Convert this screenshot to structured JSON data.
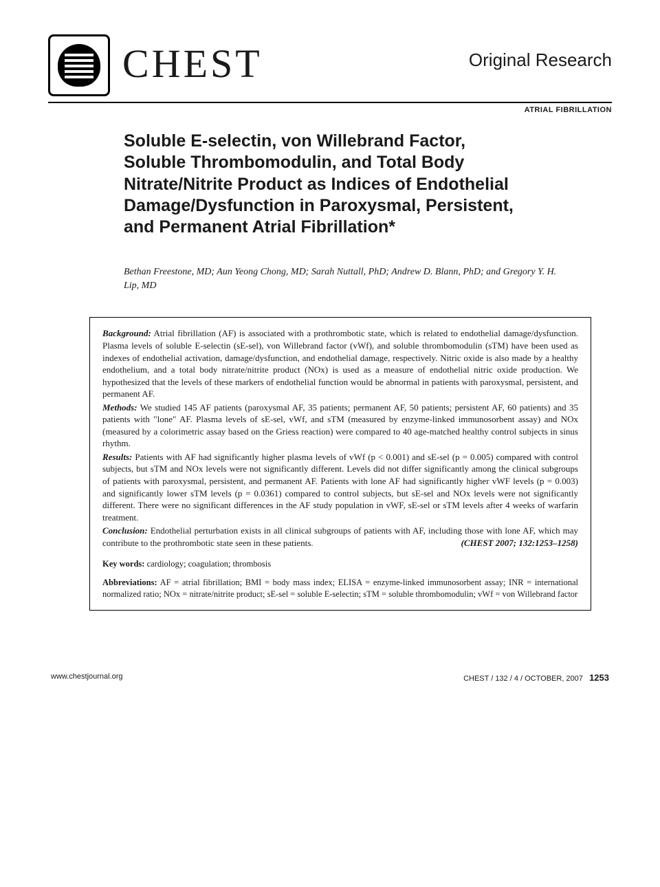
{
  "header": {
    "journal_name": "CHEST",
    "section_type": "Original Research",
    "section_topic": "ATRIAL FIBRILLATION"
  },
  "article": {
    "title": "Soluble E-selectin, von Willebrand Factor, Soluble Thrombomodulin, and Total Body Nitrate/Nitrite Product as Indices of Endothelial Damage/Dysfunction in Paroxysmal, Persistent, and Permanent Atrial Fibrillation*",
    "authors": "Bethan Freestone, MD; Aun Yeong Chong, MD; Sarah Nuttall, PhD; Andrew D. Blann, PhD; and Gregory Y. H. Lip, MD"
  },
  "abstract": {
    "background": {
      "label": "Background:",
      "text": " Atrial fibrillation (AF) is associated with a prothrombotic state, which is related to endothelial damage/dysfunction. Plasma levels of soluble E-selectin (sE-sel), von Willebrand factor (vWf), and soluble thrombomodulin (sTM) have been used as indexes of endothelial activation, damage/dysfunction, and endothelial damage, respectively. Nitric oxide is also made by a healthy endothelium, and a total body nitrate/nitrite product (NOx) is used as a measure of endothelial nitric oxide production. We hypothesized that the levels of these markers of endothelial function would be abnormal in patients with paroxysmal, persistent, and permanent AF."
    },
    "methods": {
      "label": "Methods:",
      "text": " We studied 145 AF patients (paroxysmal AF, 35 patients; permanent AF, 50 patients; persistent AF, 60 patients) and 35 patients with \"lone\" AF. Plasma levels of sE-sel, vWf, and sTM (measured by enzyme-linked immunosorbent assay) and NOx (measured by a colorimetric assay based on the Griess reaction) were compared to 40 age-matched healthy control subjects in sinus rhythm."
    },
    "results": {
      "label": "Results:",
      "text": " Patients with AF had significantly higher plasma levels of vWf (p < 0.001) and sE-sel (p = 0.005) compared with control subjects, but sTM and NOx levels were not significantly different. Levels did not differ significantly among the clinical subgroups of patients with paroxysmal, persistent, and permanent AF. Patients with lone AF had significantly higher vWF levels (p = 0.003) and significantly lower sTM levels (p = 0.0361) compared to control subjects, but sE-sel and NOx levels were not significantly different. There were no significant differences in the AF study population in vWF, sE-sel or sTM levels after 4 weeks of warfarin treatment."
    },
    "conclusion": {
      "label": "Conclusion:",
      "text": " Endothelial perturbation exists in all clinical subgroups of patients with AF, including those with lone AF, which may contribute to the prothrombotic state seen in these patients.",
      "citation": "(CHEST 2007; 132:1253–1258)"
    },
    "keywords": {
      "label": "Key words:",
      "text": " cardiology; coagulation; thrombosis"
    },
    "abbreviations": {
      "label": "Abbreviations:",
      "text": " AF = atrial fibrillation; BMI = body mass index; ELISA = enzyme-linked immunosorbent assay; INR = international normalized ratio; NOx = nitrate/nitrite product; sE-sel = soluble E-selectin; sTM = soluble thrombomodulin; vWf = von Willebrand factor"
    }
  },
  "footer": {
    "left": "www.chestjournal.org",
    "right_text": "CHEST / 132 / 4 / OCTOBER, 2007",
    "page_number": "1253"
  },
  "colors": {
    "text": "#1a1a1a",
    "border": "#000000",
    "background": "#ffffff"
  },
  "typography": {
    "title_fontsize": 25,
    "title_weight": "bold",
    "title_family": "Arial",
    "journal_fontsize": 58,
    "body_fontsize": 13,
    "authors_fontsize": 14,
    "footer_fontsize": 11
  }
}
